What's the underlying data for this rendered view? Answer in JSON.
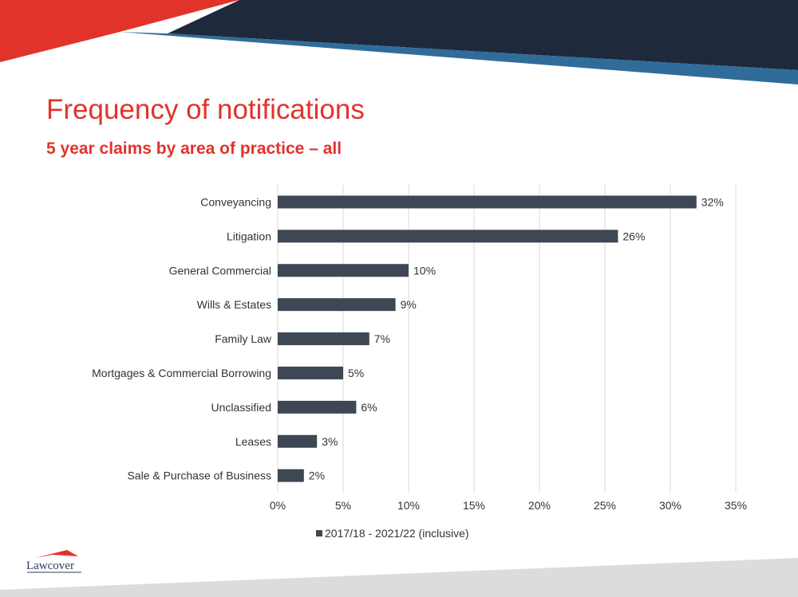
{
  "slide": {
    "title": "Frequency of notifications",
    "subtitle": "5 year claims by area of practice  – all",
    "logo_text": "Lawcover"
  },
  "colors": {
    "accent_red": "#e2332b",
    "navy": "#1e2a3c",
    "blue": "#2f6c9a",
    "bar": "#3e4753",
    "footer_grey": "#dcdcdc"
  },
  "chart_data": {
    "type": "bar",
    "orientation": "horizontal",
    "categories": [
      "Conveyancing",
      "Litigation",
      "General Commercial",
      "Wills & Estates",
      "Family Law",
      "Mortgages & Commercial Borrowing",
      "Unclassified",
      "Leases",
      "Sale & Purchase of Business"
    ],
    "series": [
      {
        "name": "2017/18 - 2021/22 (inclusive)",
        "values": [
          32,
          26,
          10,
          9,
          7,
          5,
          6,
          3,
          2
        ],
        "labels": [
          "32%",
          "26%",
          "10%",
          "9%",
          "7%",
          "5%",
          "6%",
          "3%",
          "2%"
        ]
      }
    ],
    "xlim": [
      0,
      35
    ],
    "xticks": [
      0,
      5,
      10,
      15,
      20,
      25,
      30,
      35
    ],
    "xtick_labels": [
      "0%",
      "5%",
      "10%",
      "15%",
      "20%",
      "25%",
      "30%",
      "35%"
    ],
    "grid": true,
    "legend_position": "bottom"
  }
}
